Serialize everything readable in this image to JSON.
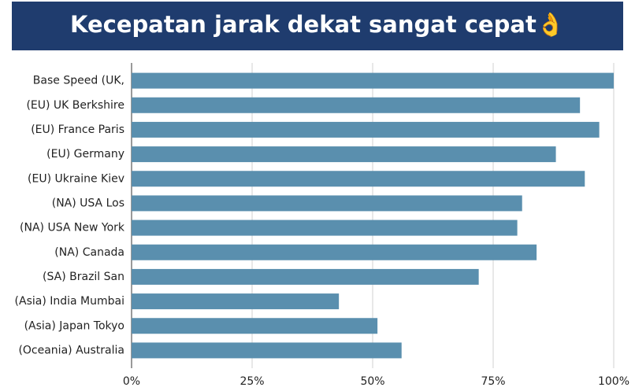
{
  "chart_data": {
    "type": "barh",
    "title": "Kecepatan jarak dekat sangat cepat👌",
    "categories": [
      "Base Speed (UK,",
      "(EU) UK Berkshire",
      "(EU) France Paris",
      "(EU) Germany",
      "(EU) Ukraine Kiev",
      "(NA) USA Los",
      "(NA) USA New York",
      "(NA) Canada",
      "(SA) Brazil San",
      "(Asia) India Mumbai",
      "(Asia) Japan Tokyo",
      "(Oceania) Australia"
    ],
    "values": [
      100,
      93,
      97,
      88,
      94,
      81,
      80,
      84,
      72,
      43,
      51,
      56
    ],
    "color": "#5a8fae",
    "xlim": [
      0,
      100
    ],
    "xticks": [
      {
        "value": 0,
        "label": "0%"
      },
      {
        "value": 25,
        "label": "25%"
      },
      {
        "value": 50,
        "label": "50%"
      },
      {
        "value": 75,
        "label": "75%"
      },
      {
        "value": 100,
        "label": "100%"
      }
    ],
    "grid": true
  }
}
